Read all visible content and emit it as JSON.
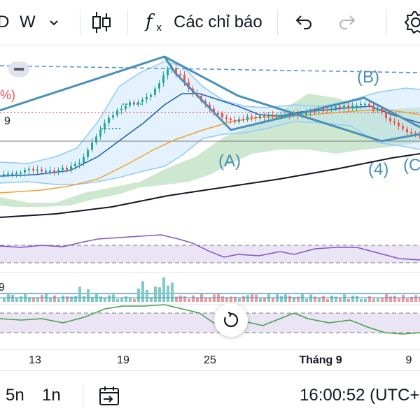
{
  "toolbar": {
    "partial_label": "D",
    "interval": "W",
    "indicators_label": "Các chỉ báo",
    "icons": [
      "chevron-down-icon",
      "candlestick-icon",
      "function-icon",
      "undo-icon",
      "redo-icon",
      "gear-icon"
    ]
  },
  "chart": {
    "side_percent": "%)",
    "side_nine": "9",
    "osc_nine": "9",
    "wave_labels": {
      "b": "(B)",
      "a": "(A)",
      "four": "(4)",
      "c": "(C"
    },
    "colors": {
      "up": "#26a69a",
      "down": "#ef5350",
      "pattern": "#4a90b8",
      "bb": "#90caf9",
      "ma_fast": "#1e5cb3",
      "ma_mid": "#f0a030",
      "ma_slow": "#131722",
      "cloud": "#a5d6a7",
      "rsi": "#7e57c2",
      "osc": "#43a047"
    }
  },
  "xaxis": {
    "labels": [
      "13",
      "19",
      "25",
      "Tháng 9",
      "9"
    ]
  },
  "bottombar": {
    "range_5n": "5n",
    "range_1n": "1n",
    "time": "16:00:52 (UTC+"
  }
}
